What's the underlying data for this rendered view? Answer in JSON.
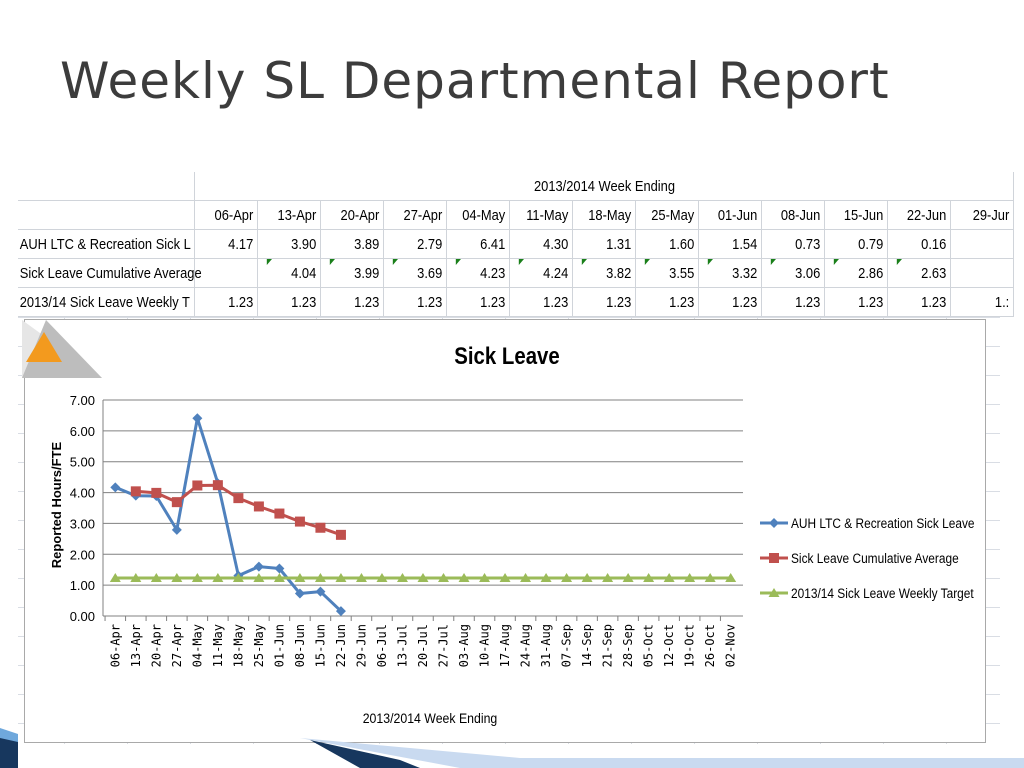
{
  "slide": {
    "title": "Weekly SL Departmental Report"
  },
  "table": {
    "group_header": "2013/2014 Week Ending",
    "columns": [
      "06-Apr",
      "13-Apr",
      "20-Apr",
      "27-Apr",
      "04-May",
      "11-May",
      "18-May",
      "25-May",
      "01-Jun",
      "08-Jun",
      "15-Jun",
      "22-Jun",
      "29-Jur"
    ],
    "rows": [
      {
        "label": "AUH LTC & Recreation Sick L",
        "values": [
          "4.17",
          "3.90",
          "3.89",
          "2.79",
          "6.41",
          "4.30",
          "1.31",
          "1.60",
          "1.54",
          "0.73",
          "0.79",
          "0.16",
          ""
        ]
      },
      {
        "label": "Sick Leave Cumulative Average",
        "values": [
          "",
          "4.04",
          "3.99",
          "3.69",
          "4.23",
          "4.24",
          "3.82",
          "3.55",
          "3.32",
          "3.06",
          "2.86",
          "2.63",
          ""
        ]
      },
      {
        "label": "2013/14 Sick Leave Weekly T",
        "values": [
          "1.23",
          "1.23",
          "1.23",
          "1.23",
          "1.23",
          "1.23",
          "1.23",
          "1.23",
          "1.23",
          "1.23",
          "1.23",
          "1.23",
          "1.:"
        ]
      }
    ]
  },
  "chart_data": {
    "type": "line",
    "title": "Sick Leave",
    "xlabel": "2013/2014 Week Ending",
    "ylabel": "Reported Hours/FTE",
    "ylim": [
      0,
      7
    ],
    "yticks": [
      "0.00",
      "1.00",
      "2.00",
      "3.00",
      "4.00",
      "5.00",
      "6.00",
      "7.00"
    ],
    "grid": true,
    "legend_position": "right",
    "categories": [
      "06-Apr",
      "13-Apr",
      "20-Apr",
      "27-Apr",
      "04-May",
      "11-May",
      "18-May",
      "25-May",
      "01-Jun",
      "08-Jun",
      "15-Jun",
      "22-Jun",
      "29-Jun",
      "06-Jul",
      "13-Jul",
      "20-Jul",
      "27-Jul",
      "03-Aug",
      "10-Aug",
      "17-Aug",
      "24-Aug",
      "31-Aug",
      "07-Sep",
      "14-Sep",
      "21-Sep",
      "28-Sep",
      "05-Oct",
      "12-Oct",
      "19-Oct",
      "26-Oct",
      "02-Nov"
    ],
    "series": [
      {
        "name": "AUH LTC & Recreation Sick Leave",
        "color": "#4f81bd",
        "marker": "diamond",
        "values": [
          4.17,
          3.9,
          3.89,
          2.79,
          6.41,
          4.3,
          1.31,
          1.6,
          1.54,
          0.73,
          0.79,
          0.16,
          null,
          null,
          null,
          null,
          null,
          null,
          null,
          null,
          null,
          null,
          null,
          null,
          null,
          null,
          null,
          null,
          null,
          null,
          null
        ]
      },
      {
        "name": "Sick Leave Cumulative  Average",
        "color": "#c0504d",
        "marker": "square",
        "values": [
          null,
          4.04,
          3.99,
          3.69,
          4.23,
          4.24,
          3.82,
          3.55,
          3.32,
          3.06,
          2.86,
          2.63,
          null,
          null,
          null,
          null,
          null,
          null,
          null,
          null,
          null,
          null,
          null,
          null,
          null,
          null,
          null,
          null,
          null,
          null,
          null
        ]
      },
      {
        "name": "2013/14 Sick Leave Weekly Target",
        "color": "#9bbb59",
        "marker": "triangle",
        "values": [
          1.23,
          1.23,
          1.23,
          1.23,
          1.23,
          1.23,
          1.23,
          1.23,
          1.23,
          1.23,
          1.23,
          1.23,
          1.23,
          1.23,
          1.23,
          1.23,
          1.23,
          1.23,
          1.23,
          1.23,
          1.23,
          1.23,
          1.23,
          1.23,
          1.23,
          1.23,
          1.23,
          1.23,
          1.23,
          1.23,
          1.23
        ]
      }
    ]
  },
  "colors": {
    "title": "#3c3c3c",
    "grid": "#808080",
    "logo": "#f39a1e",
    "accent_dark": "#17375e",
    "accent_light": "#6fa8dc"
  },
  "logo": {
    "icon": "triangle-logo-icon"
  }
}
